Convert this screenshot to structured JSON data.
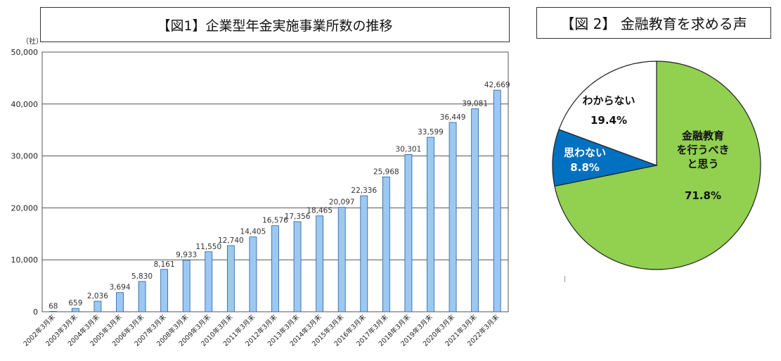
{
  "chart_data": [
    {
      "type": "bar",
      "title": "【図1】企業型年金実施事業所数の推移",
      "unit_label": "（社）",
      "ylim": [
        0,
        50000
      ],
      "yticks": [
        "0",
        "10,000",
        "20,000",
        "30,000",
        "40,000",
        "50,000"
      ],
      "grid": true,
      "bar_color": "#9dc8f0",
      "bar_edge_color": "#1f5fa8",
      "categories": [
        "2002年3月末",
        "2003年3月末",
        "2004年3月末",
        "2005年3月末",
        "2006年3月末",
        "2007年3月末",
        "2008年3月末",
        "2009年3月末",
        "2010年3月末",
        "2011年3月末",
        "2012年3月末",
        "2013年3月末",
        "2014年3月末",
        "2015年3月末",
        "2016年3月末",
        "2017年3月末",
        "2018年3月末",
        "2019年3月末",
        "2020年3月末",
        "2021年3月末",
        "2022年3月末"
      ],
      "values": [
        68,
        659,
        2036,
        3694,
        5830,
        8161,
        9933,
        11550,
        12740,
        14405,
        16576,
        17356,
        18465,
        20097,
        22336,
        25968,
        30301,
        33599,
        36449,
        39081,
        42669
      ],
      "value_labels": [
        "68",
        "659",
        "2,036",
        "3,694",
        "5,830",
        "8,161",
        "9,933",
        "11,550",
        "12,740",
        "14,405",
        "16,576",
        "17,356",
        "18,465",
        "20,097",
        "22,336",
        "25,968",
        "30,301",
        "33,599",
        "36,449",
        "39,081",
        "42,669"
      ]
    },
    {
      "type": "pie",
      "title": "【図 2】 金融教育を求める声",
      "slices": [
        {
          "label_lines": [
            "金融教育",
            "を行うべき",
            "と思う"
          ],
          "value": 71.8,
          "pct_label": "71.8%",
          "color": "#92d050",
          "text_color": "#111111"
        },
        {
          "label_lines": [
            "思わない"
          ],
          "value": 8.8,
          "pct_label": "8.8%",
          "color": "#0070c0",
          "text_color": "#ffffff"
        },
        {
          "label_lines": [
            "わからない"
          ],
          "value": 19.4,
          "pct_label": "19.4%",
          "color": "#ffffff",
          "text_color": "#111111"
        }
      ]
    }
  ]
}
